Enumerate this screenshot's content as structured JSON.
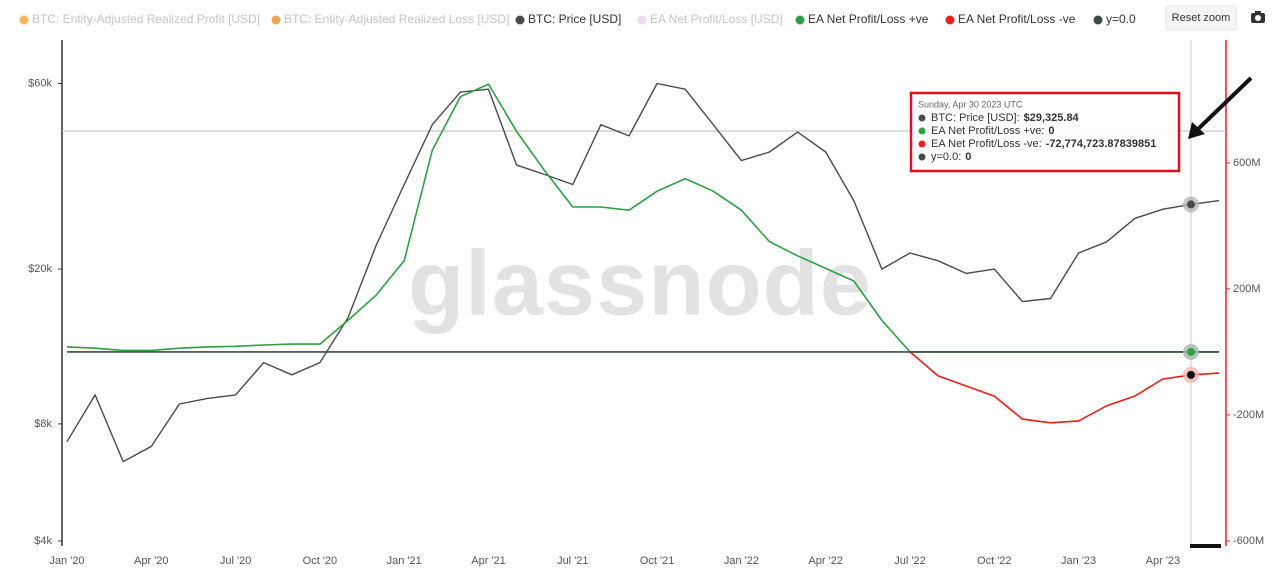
{
  "chart_data": {
    "type": "line",
    "categories": [
      "Jan '20",
      null,
      null,
      "Apr '20",
      null,
      null,
      "Jul '20",
      null,
      null,
      "Oct '20",
      null,
      null,
      "Jan '21",
      null,
      null,
      "Apr '21",
      null,
      null,
      "Jul '21",
      null,
      null,
      "Oct '21",
      null,
      null,
      "Jan '22",
      null,
      null,
      "Apr '22",
      null,
      null,
      "Jul '22",
      null,
      null,
      "Oct '22",
      null,
      null,
      "Jan '23",
      null,
      null,
      "Apr '23",
      null,
      null
    ],
    "hidden_series": [
      {
        "name": "BTC: Entity-Adjusted Realized Profit [USD]",
        "color": "#f2a33a"
      },
      {
        "name": "BTC: Entity-Adjusted Realized Loss [USD]",
        "color": "#e8902a"
      },
      {
        "name": "EA Net Profit/Loss [USD]",
        "color": "#e3d3f3"
      }
    ],
    "series": [
      {
        "name": "BTC: Price [USD]",
        "color": "#4a4a4a",
        "axis": "y",
        "values": [
          7200,
          9500,
          6400,
          7000,
          9000,
          9300,
          9500,
          11500,
          10700,
          11500,
          15000,
          23000,
          33000,
          47000,
          57000,
          58000,
          37000,
          35000,
          33000,
          47000,
          44000,
          60000,
          58000,
          47000,
          38000,
          40000,
          45000,
          40000,
          30000,
          20000,
          22000,
          21000,
          19500,
          20000,
          16500,
          16800,
          22000,
          23500,
          27000,
          28500,
          29325.84,
          30000
        ]
      },
      {
        "name": "EA Net Profit/Loss +ve",
        "color": "#2ea043",
        "axis": "y2",
        "values": [
          16000000,
          12000000,
          5000000,
          5000000,
          12000000,
          16000000,
          18000000,
          22000000,
          25000000,
          25000000,
          100000000,
          180000000,
          290000000,
          640000000,
          810000000,
          850000000,
          700000000,
          575000000,
          460000000,
          460000000,
          450000000,
          510000000,
          550000000,
          510000000,
          450000000,
          350000000,
          305000000,
          265000000,
          225000000,
          100000000,
          0,
          0,
          0,
          0,
          0,
          0,
          0,
          0,
          0,
          0,
          0,
          0
        ]
      },
      {
        "name": "EA Net Profit/Loss -ve",
        "color": "#e8201c",
        "axis": "y2",
        "values": [
          null,
          null,
          null,
          null,
          null,
          null,
          null,
          null,
          null,
          null,
          null,
          null,
          null,
          null,
          null,
          null,
          null,
          null,
          null,
          null,
          null,
          null,
          null,
          null,
          null,
          null,
          null,
          null,
          null,
          null,
          0,
          -76000000,
          -108000000,
          -140000000,
          -213000000,
          -225000000,
          -219000000,
          -171000000,
          -140000000,
          -86000000,
          -72774723.87839851,
          -67000000
        ]
      },
      {
        "name": "y=0.0",
        "color": "#3f4a44",
        "axis": "y2",
        "values": [
          0,
          0,
          0,
          0,
          0,
          0,
          0,
          0,
          0,
          0,
          0,
          0,
          0,
          0,
          0,
          0,
          0,
          0,
          0,
          0,
          0,
          0,
          0,
          0,
          0,
          0,
          0,
          0,
          0,
          0,
          0,
          0,
          0,
          0,
          0,
          0,
          0,
          0,
          0,
          0,
          0,
          0
        ]
      }
    ],
    "ylog": true,
    "ylim": [
      4000,
      77600
    ],
    "yticks": [
      {
        "value": 4000,
        "label": "$4k"
      },
      {
        "value": 8000,
        "label": "$8k"
      },
      {
        "value": 20000,
        "label": "$20k"
      },
      {
        "value": 60000,
        "label": "$60k"
      }
    ],
    "y2lim": [
      -600000000,
      990000000
    ],
    "y2ticks": [
      {
        "value": -600000000,
        "label": "-600M"
      },
      {
        "value": -200000000,
        "label": "-200M"
      },
      {
        "value": 200000000,
        "label": "200M"
      },
      {
        "value": 600000000,
        "label": "600M"
      }
    ],
    "watermark": "glassnode",
    "tooltip": {
      "date": "Sunday, Apr 30 2023 UTC",
      "items": [
        {
          "label": "BTC: Price [USD]:",
          "value": "$29,325.84",
          "color": "#4a4a4a"
        },
        {
          "label": "EA Net Profit/Loss +ve:",
          "value": "0",
          "color": "#2ea043"
        },
        {
          "label": "EA Net Profit/Loss -ve:",
          "value": "-72,774,723.87839851",
          "color": "#e8201c"
        },
        {
          "label": "y=0.0:",
          "value": "0",
          "color": "#3f4a44"
        }
      ]
    }
  },
  "controls": {
    "reset_zoom": "Reset zoom"
  }
}
